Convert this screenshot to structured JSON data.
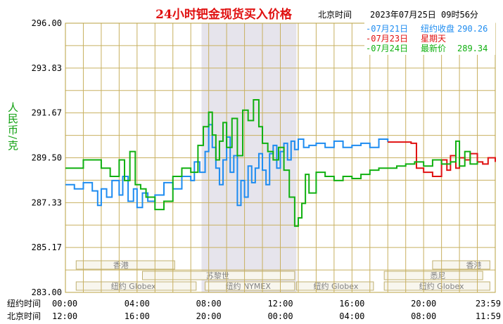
{
  "header": {
    "title": "24小时钯金现货买入价格",
    "timezone_label": "北京时间",
    "timestamp": "2023年07月25日 09时56分"
  },
  "legend": [
    {
      "date": "07月21日",
      "text": "纽约收盘",
      "value": "290.26",
      "color": "#1e8cf0"
    },
    {
      "date": "07月23日",
      "text": "星期天",
      "value": "",
      "color": "#e01010"
    },
    {
      "date": "07月24日",
      "text": "最新价",
      "value": "289.34",
      "color": "#10b010"
    }
  ],
  "y_axis": {
    "label": "人民币/克"
  },
  "x_axis": {
    "row_ny_label": "纽约时间",
    "row_bj_label": "北京时间",
    "ny_ticks": [
      "00:00",
      "04:00",
      "08:00",
      "12:00",
      "16:00",
      "20:00",
      "23:59"
    ],
    "bj_ticks": [
      "12:00",
      "16:00",
      "20:00",
      "00:00",
      "04:00",
      "08:00",
      "11:59"
    ]
  },
  "market_bands": {
    "hongkong_left": "香港",
    "zurich": "苏黎世",
    "globex_left": "纽约 Globex",
    "nymex": "纽约 NYMEX",
    "globex_mid": "纽约 Globex",
    "sydney": "悉尼",
    "hongkong_right": "香港",
    "globex_right": "纽约 Globex"
  },
  "chart_data": {
    "type": "line",
    "ylim": [
      283.0,
      296.0
    ],
    "yticks": [
      "283.00",
      "285.17",
      "287.33",
      "289.50",
      "291.67",
      "293.83",
      "296.00"
    ],
    "x_unit": "hours since 00:00 New York time",
    "xlim": [
      0,
      24
    ],
    "highlight_range": [
      7.6,
      12.9
    ],
    "series": [
      {
        "name": "07月21日",
        "color": "#1e8cf0",
        "x": [
          0,
          0.5,
          1,
          1.5,
          1.8,
          2,
          2.3,
          2.6,
          3,
          3.2,
          3.5,
          3.8,
          4,
          4.3,
          4.6,
          5,
          5.5,
          6,
          6.5,
          7,
          7.2,
          7.5,
          7.8,
          8,
          8.2,
          8.4,
          8.6,
          8.8,
          9,
          9.2,
          9.4,
          9.6,
          9.8,
          10,
          10.2,
          10.4,
          10.6,
          10.8,
          11,
          11.2,
          11.4,
          11.6,
          11.8,
          12,
          12.2,
          12.4,
          12.6,
          12.8,
          13,
          13.3,
          13.6,
          14,
          14.5,
          15,
          15.5,
          16,
          16.5,
          17,
          17.5,
          18
        ],
        "y": [
          288.2,
          288.0,
          288.3,
          287.9,
          287.2,
          288.0,
          287.6,
          288.4,
          287.7,
          288.6,
          287.4,
          288.0,
          287.1,
          287.8,
          287.4,
          287.7,
          288.3,
          288.0,
          288.6,
          288.4,
          289.3,
          288.8,
          289.8,
          291.1,
          290.0,
          289.0,
          288.2,
          289.4,
          290.5,
          288.8,
          289.6,
          287.2,
          288.4,
          287.6,
          289.1,
          288.3,
          289.0,
          289.7,
          288.9,
          288.2,
          289.7,
          290.1,
          289.0,
          289.8,
          290.2,
          289.4,
          290.3,
          289.9,
          290.4,
          290.0,
          290.1,
          290.2,
          290.0,
          290.3,
          290.0,
          290.1,
          290.2,
          290.0,
          290.4,
          290.26
        ]
      },
      {
        "name": "07月23日",
        "color": "#e01010",
        "x": [
          18,
          18.5,
          19,
          19.3,
          19.6,
          20,
          20.5,
          21,
          21.3,
          21.5,
          21.8,
          22,
          22.3,
          22.6,
          23,
          23.3,
          23.6,
          24
        ],
        "y": [
          290.26,
          290.26,
          290.26,
          290.2,
          289.0,
          288.8,
          288.6,
          289.4,
          288.9,
          289.6,
          289.0,
          289.5,
          289.4,
          289.7,
          289.3,
          289.2,
          289.5,
          289.3
        ]
      },
      {
        "name": "07月24日",
        "color": "#10b010",
        "x": [
          0,
          1,
          2,
          2.5,
          3,
          3.3,
          3.6,
          3.9,
          4.2,
          4.5,
          5,
          5.5,
          6,
          6.5,
          7,
          7.4,
          7.7,
          8,
          8.2,
          8.4,
          8.6,
          8.8,
          9,
          9.3,
          9.6,
          9.9,
          10.2,
          10.5,
          10.8,
          11,
          11.3,
          11.6,
          11.9,
          12.2,
          12.5,
          12.8,
          13,
          13.2,
          13.4,
          13.6,
          14,
          14.5,
          15,
          15.5,
          16,
          16.5,
          17,
          17.5,
          18,
          18.5,
          19,
          19.5,
          20,
          20.5,
          21,
          21.5,
          21.8,
          22,
          22.3,
          22.6,
          23
        ],
        "y": [
          289.0,
          289.4,
          289.0,
          288.6,
          289.4,
          288.4,
          289.8,
          288.2,
          288.0,
          287.6,
          287.0,
          287.4,
          288.6,
          289.0,
          288.8,
          290.1,
          291.0,
          291.7,
          290.6,
          289.4,
          290.3,
          291.2,
          290.0,
          291.4,
          289.6,
          291.8,
          291.3,
          292.3,
          291.0,
          290.2,
          289.8,
          289.4,
          290.0,
          288.9,
          287.6,
          286.2,
          286.6,
          287.3,
          288.7,
          287.8,
          288.8,
          288.6,
          288.4,
          288.6,
          288.5,
          288.7,
          288.9,
          289.0,
          289.0,
          289.1,
          289.2,
          289.3,
          289.1,
          289.4,
          289.2,
          289.3,
          290.3,
          289.1,
          289.8,
          289.2,
          289.34
        ]
      }
    ]
  }
}
